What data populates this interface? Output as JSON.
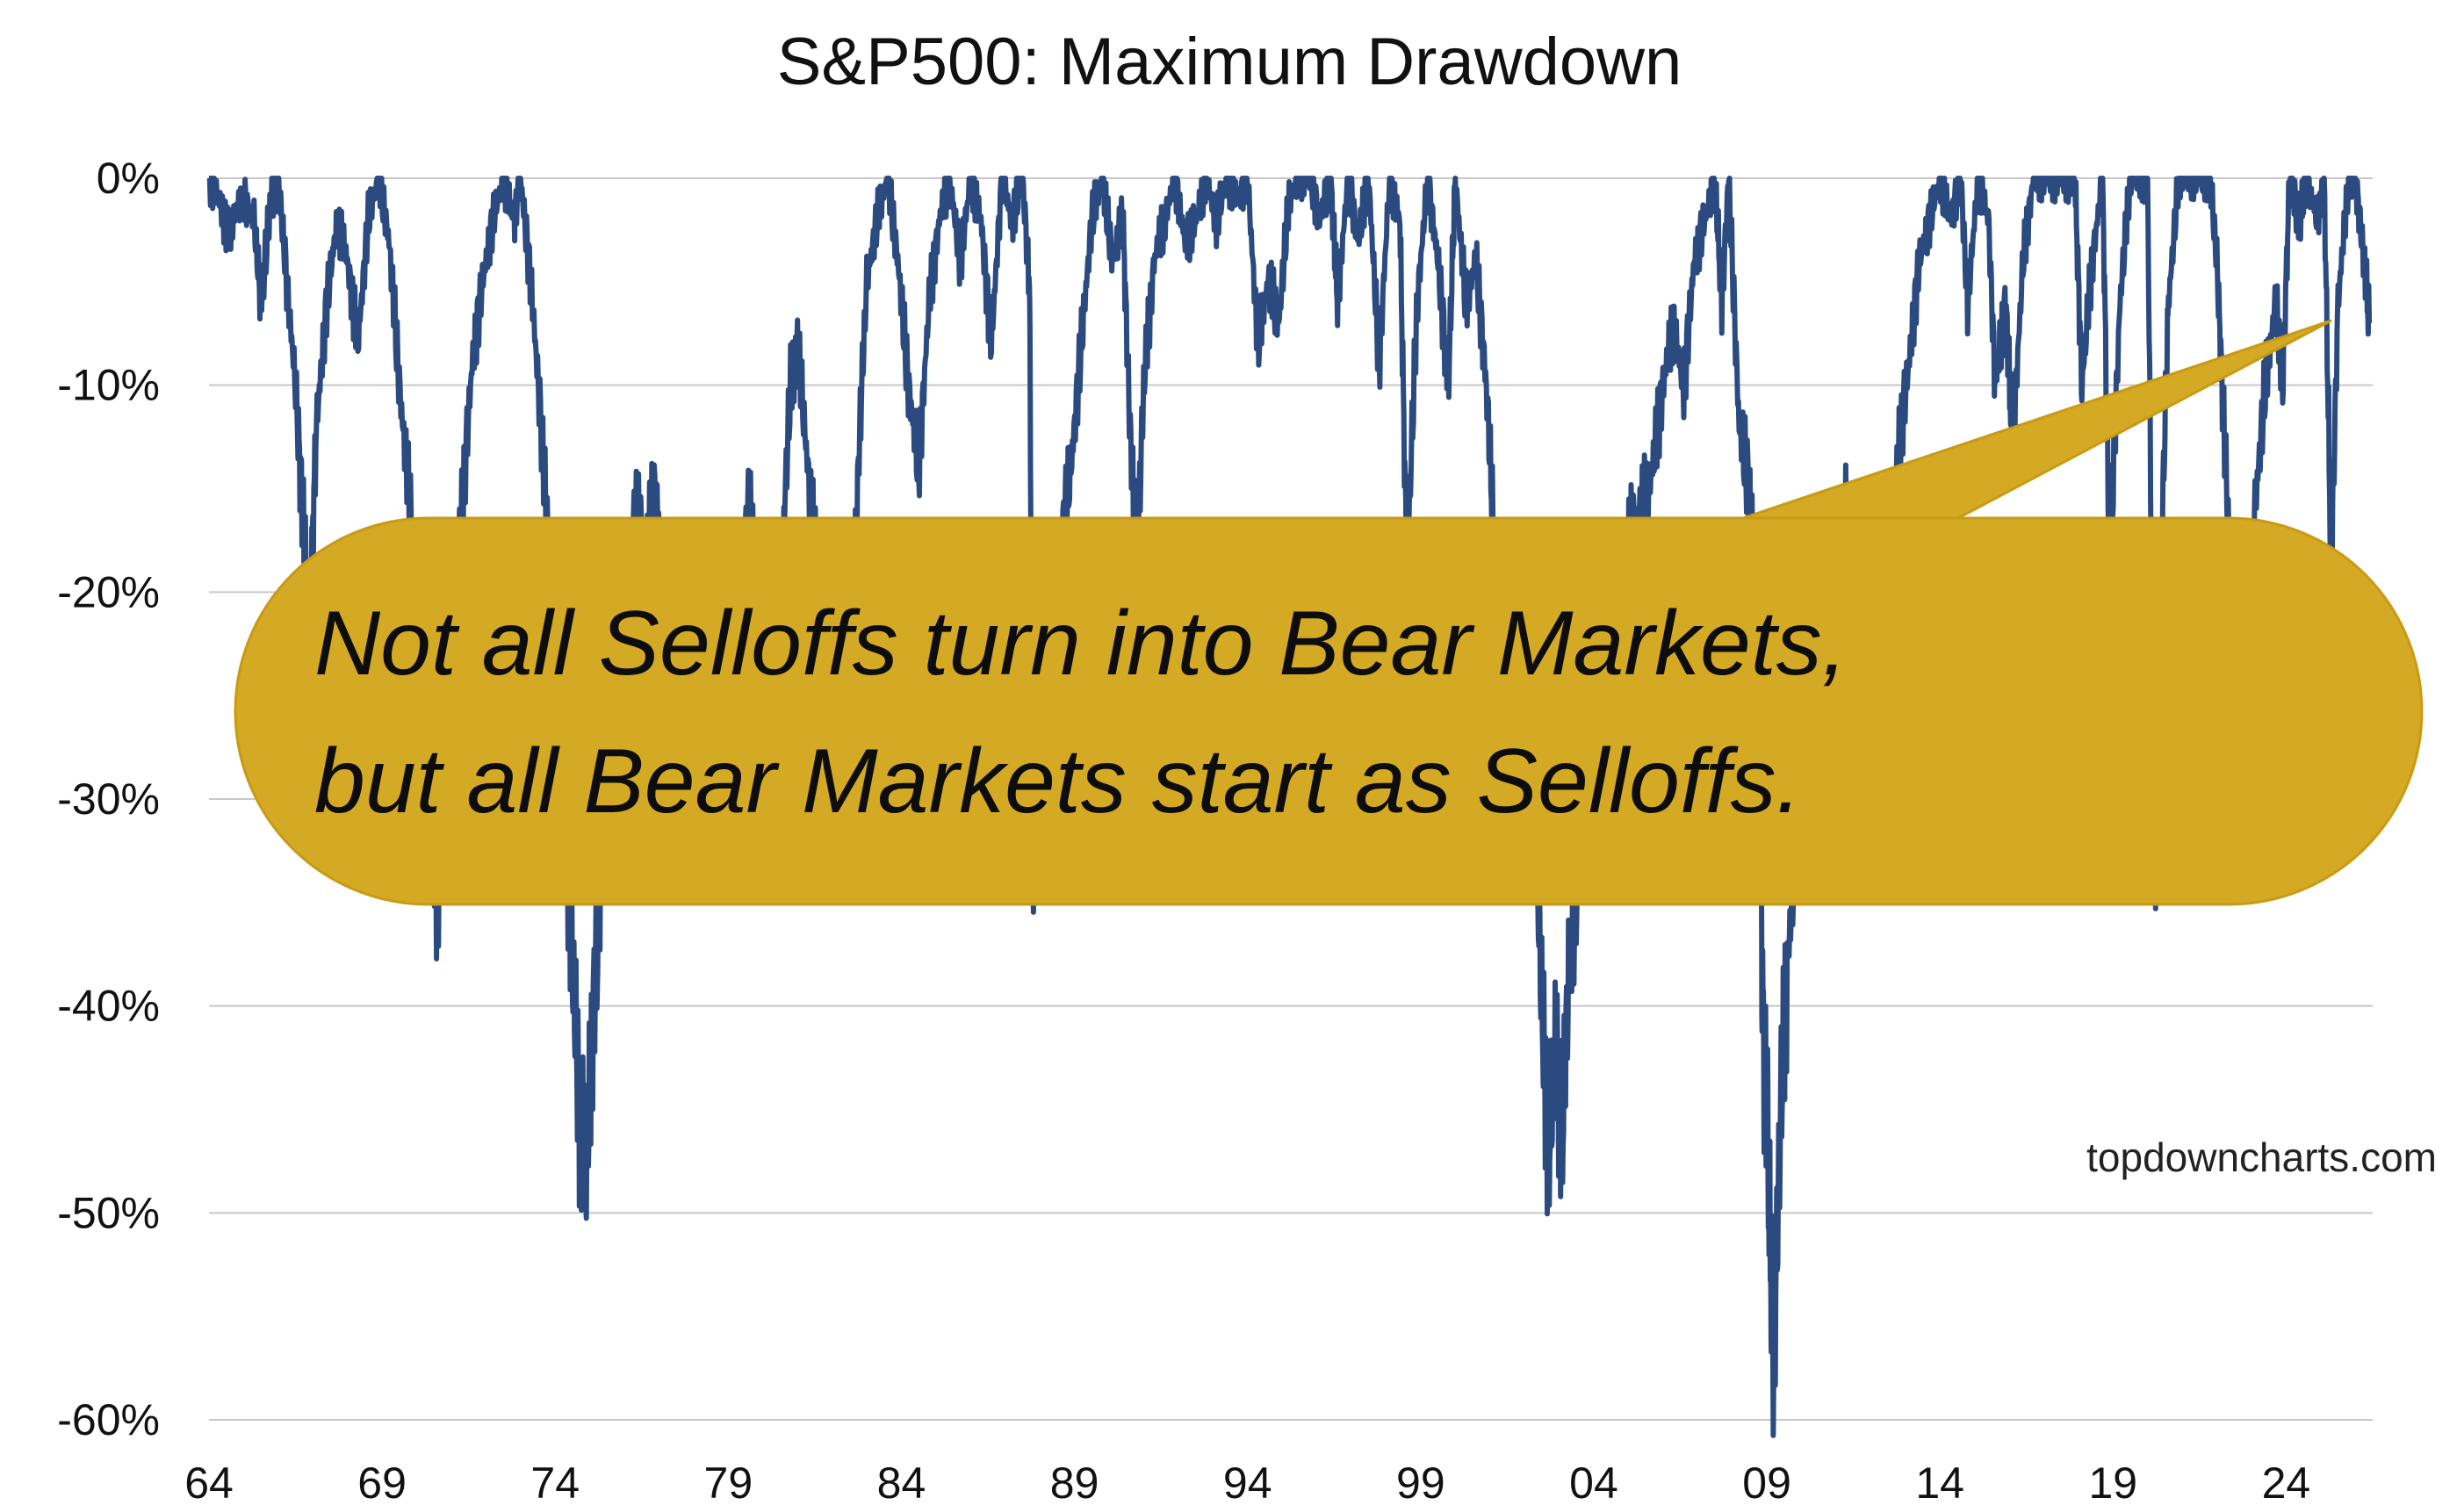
{
  "chart_data": {
    "type": "area",
    "title": "S&P500: Maximum Drawdown",
    "xlabel": "",
    "ylabel": "",
    "source": "topdowncharts.com",
    "callout": {
      "line1": "Not all Selloffs turn into Bear Markets,",
      "line2": "but all Bear Markets start as Selloffs."
    },
    "xlim": [
      1964,
      2026.5
    ],
    "ylim": [
      -60,
      0
    ],
    "x_ticks": [
      {
        "value": 1964,
        "label": "64"
      },
      {
        "value": 1969,
        "label": "69"
      },
      {
        "value": 1974,
        "label": "74"
      },
      {
        "value": 1979,
        "label": "79"
      },
      {
        "value": 1984,
        "label": "84"
      },
      {
        "value": 1989,
        "label": "89"
      },
      {
        "value": 1994,
        "label": "94"
      },
      {
        "value": 1999,
        "label": "99"
      },
      {
        "value": 2004,
        "label": "04"
      },
      {
        "value": 2009,
        "label": "09"
      },
      {
        "value": 2014,
        "label": "14"
      },
      {
        "value": 2019,
        "label": "19"
      },
      {
        "value": 2024,
        "label": "24"
      }
    ],
    "y_ticks": [
      {
        "value": 0,
        "label": "0%"
      },
      {
        "value": -10,
        "label": "-10%"
      },
      {
        "value": -20,
        "label": "-20%"
      },
      {
        "value": -30,
        "label": "-30%"
      },
      {
        "value": -40,
        "label": "-40%"
      },
      {
        "value": -50,
        "label": "-50%"
      },
      {
        "value": -60,
        "label": "-60%"
      }
    ],
    "grid": "horizontal",
    "series": [
      {
        "color": "#2b4a80",
        "points": [
          [
            1964.0,
            0
          ],
          [
            1964.3,
            -1
          ],
          [
            1964.6,
            -3
          ],
          [
            1965.0,
            -1
          ],
          [
            1965.3,
            -2
          ],
          [
            1965.5,
            -6
          ],
          [
            1965.8,
            -1
          ],
          [
            1966.0,
            0
          ],
          [
            1966.2,
            -4
          ],
          [
            1966.5,
            -10
          ],
          [
            1966.7,
            -16
          ],
          [
            1966.9,
            -22
          ],
          [
            1967.1,
            -12
          ],
          [
            1967.4,
            -6
          ],
          [
            1967.7,
            -2
          ],
          [
            1968.0,
            -4
          ],
          [
            1968.3,
            -8
          ],
          [
            1968.6,
            -2
          ],
          [
            1968.9,
            0
          ],
          [
            1969.2,
            -3
          ],
          [
            1969.5,
            -10
          ],
          [
            1969.8,
            -16
          ],
          [
            1970.1,
            -22
          ],
          [
            1970.4,
            -30
          ],
          [
            1970.6,
            -35
          ],
          [
            1970.8,
            -28
          ],
          [
            1971.0,
            -22
          ],
          [
            1971.3,
            -16
          ],
          [
            1971.6,
            -9
          ],
          [
            1971.9,
            -5
          ],
          [
            1972.2,
            -2
          ],
          [
            1972.5,
            0
          ],
          [
            1972.8,
            -2
          ],
          [
            1973.0,
            0
          ],
          [
            1973.3,
            -5
          ],
          [
            1973.6,
            -12
          ],
          [
            1973.9,
            -20
          ],
          [
            1974.2,
            -28
          ],
          [
            1974.5,
            -38
          ],
          [
            1974.7,
            -45
          ],
          [
            1974.9,
            -48
          ],
          [
            1975.1,
            -40
          ],
          [
            1975.4,
            -32
          ],
          [
            1975.7,
            -28
          ],
          [
            1976.0,
            -20
          ],
          [
            1976.3,
            -16
          ],
          [
            1976.6,
            -18
          ],
          [
            1976.9,
            -15
          ],
          [
            1977.2,
            -20
          ],
          [
            1977.5,
            -22
          ],
          [
            1977.8,
            -26
          ],
          [
            1978.1,
            -30
          ],
          [
            1978.4,
            -24
          ],
          [
            1978.7,
            -18
          ],
          [
            1979.0,
            -24
          ],
          [
            1979.3,
            -20
          ],
          [
            1979.6,
            -16
          ],
          [
            1979.9,
            -20
          ],
          [
            1980.2,
            -26
          ],
          [
            1980.5,
            -20
          ],
          [
            1980.8,
            -10
          ],
          [
            1981.0,
            -8
          ],
          [
            1981.3,
            -14
          ],
          [
            1981.6,
            -20
          ],
          [
            1981.9,
            -24
          ],
          [
            1982.2,
            -26
          ],
          [
            1982.5,
            -27
          ],
          [
            1982.8,
            -12
          ],
          [
            1983.0,
            -5
          ],
          [
            1983.3,
            -2
          ],
          [
            1983.6,
            0
          ],
          [
            1983.9,
            -4
          ],
          [
            1984.2,
            -10
          ],
          [
            1984.5,
            -14
          ],
          [
            1984.8,
            -6
          ],
          [
            1985.1,
            -2
          ],
          [
            1985.4,
            0
          ],
          [
            1985.7,
            -4
          ],
          [
            1986.0,
            0
          ],
          [
            1986.3,
            -2
          ],
          [
            1986.6,
            -8
          ],
          [
            1986.9,
            0
          ],
          [
            1987.2,
            -2
          ],
          [
            1987.5,
            0
          ],
          [
            1987.7,
            -5
          ],
          [
            1987.8,
            -33
          ],
          [
            1988.0,
            -26
          ],
          [
            1988.3,
            -20
          ],
          [
            1988.6,
            -18
          ],
          [
            1988.9,
            -14
          ],
          [
            1989.2,
            -8
          ],
          [
            1989.5,
            -2
          ],
          [
            1989.8,
            0
          ],
          [
            1990.1,
            -4
          ],
          [
            1990.4,
            -2
          ],
          [
            1990.6,
            -12
          ],
          [
            1990.8,
            -19
          ],
          [
            1991.0,
            -10
          ],
          [
            1991.3,
            -4
          ],
          [
            1991.6,
            -2
          ],
          [
            1991.9,
            0
          ],
          [
            1992.2,
            -3
          ],
          [
            1992.5,
            -2
          ],
          [
            1992.8,
            0
          ],
          [
            1993.1,
            -2
          ],
          [
            1993.4,
            0
          ],
          [
            1993.7,
            -1
          ],
          [
            1994.0,
            0
          ],
          [
            1994.3,
            -8
          ],
          [
            1994.6,
            -5
          ],
          [
            1994.9,
            -7
          ],
          [
            1995.2,
            -1
          ],
          [
            1995.5,
            0
          ],
          [
            1995.8,
            0
          ],
          [
            1996.1,
            -2
          ],
          [
            1996.4,
            0
          ],
          [
            1996.6,
            -6
          ],
          [
            1996.9,
            0
          ],
          [
            1997.2,
            -3
          ],
          [
            1997.5,
            0
          ],
          [
            1997.8,
            -9
          ],
          [
            1998.1,
            0
          ],
          [
            1998.4,
            -2
          ],
          [
            1998.6,
            -19
          ],
          [
            1998.9,
            -6
          ],
          [
            1999.2,
            0
          ],
          [
            1999.5,
            -4
          ],
          [
            1999.8,
            -10
          ],
          [
            2000.0,
            0
          ],
          [
            2000.3,
            -6
          ],
          [
            2000.6,
            -4
          ],
          [
            2000.9,
            -10
          ],
          [
            2001.1,
            -17
          ],
          [
            2001.3,
            -24
          ],
          [
            2001.6,
            -20
          ],
          [
            2001.8,
            -30
          ],
          [
            2002.0,
            -26
          ],
          [
            2002.3,
            -30
          ],
          [
            2002.5,
            -40
          ],
          [
            2002.7,
            -47
          ],
          [
            2002.9,
            -42
          ],
          [
            2003.1,
            -46
          ],
          [
            2003.3,
            -38
          ],
          [
            2003.6,
            -32
          ],
          [
            2003.9,
            -27
          ],
          [
            2004.2,
            -22
          ],
          [
            2004.5,
            -23
          ],
          [
            2004.8,
            -20
          ],
          [
            2005.1,
            -17
          ],
          [
            2005.4,
            -16
          ],
          [
            2005.7,
            -14
          ],
          [
            2006.0,
            -10
          ],
          [
            2006.3,
            -7
          ],
          [
            2006.6,
            -10
          ],
          [
            2006.9,
            -4
          ],
          [
            2007.2,
            -2
          ],
          [
            2007.5,
            0
          ],
          [
            2007.7,
            -6
          ],
          [
            2007.9,
            0
          ],
          [
            2008.2,
            -12
          ],
          [
            2008.5,
            -15
          ],
          [
            2008.7,
            -20
          ],
          [
            2008.8,
            -30
          ],
          [
            2008.9,
            -42
          ],
          [
            2009.0,
            -45
          ],
          [
            2009.1,
            -52
          ],
          [
            2009.2,
            -57
          ],
          [
            2009.4,
            -45
          ],
          [
            2009.6,
            -38
          ],
          [
            2009.9,
            -30
          ],
          [
            2010.2,
            -26
          ],
          [
            2010.4,
            -32
          ],
          [
            2010.7,
            -27
          ],
          [
            2011.0,
            -20
          ],
          [
            2011.3,
            -16
          ],
          [
            2011.6,
            -28
          ],
          [
            2011.9,
            -23
          ],
          [
            2012.2,
            -16
          ],
          [
            2012.5,
            -20
          ],
          [
            2012.8,
            -13
          ],
          [
            2013.1,
            -9
          ],
          [
            2013.4,
            -4
          ],
          [
            2013.7,
            -2
          ],
          [
            2014.0,
            0
          ],
          [
            2014.3,
            -2
          ],
          [
            2014.6,
            0
          ],
          [
            2014.8,
            -6
          ],
          [
            2015.1,
            0
          ],
          [
            2015.4,
            -2
          ],
          [
            2015.6,
            -10
          ],
          [
            2015.9,
            -6
          ],
          [
            2016.1,
            -13
          ],
          [
            2016.4,
            -4
          ],
          [
            2016.7,
            0
          ],
          [
            2017.0,
            0
          ],
          [
            2017.3,
            0
          ],
          [
            2017.6,
            0
          ],
          [
            2017.9,
            0
          ],
          [
            2018.1,
            -10
          ],
          [
            2018.4,
            -4
          ],
          [
            2018.7,
            0
          ],
          [
            2018.9,
            -19
          ],
          [
            2019.2,
            -6
          ],
          [
            2019.5,
            0
          ],
          [
            2019.8,
            0
          ],
          [
            2020.0,
            0
          ],
          [
            2020.2,
            -34
          ],
          [
            2020.4,
            -18
          ],
          [
            2020.6,
            -6
          ],
          [
            2020.9,
            0
          ],
          [
            2021.2,
            0
          ],
          [
            2021.5,
            0
          ],
          [
            2021.8,
            0
          ],
          [
            2022.0,
            -4
          ],
          [
            2022.2,
            -12
          ],
          [
            2022.5,
            -23
          ],
          [
            2022.7,
            -18
          ],
          [
            2022.9,
            -25
          ],
          [
            2023.1,
            -16
          ],
          [
            2023.4,
            -10
          ],
          [
            2023.7,
            -6
          ],
          [
            2023.9,
            -10
          ],
          [
            2024.1,
            0
          ],
          [
            2024.4,
            -2
          ],
          [
            2024.6,
            0
          ],
          [
            2024.9,
            -2
          ],
          [
            2025.1,
            0
          ],
          [
            2025.3,
            -19
          ],
          [
            2025.5,
            -6
          ],
          [
            2025.8,
            0
          ],
          [
            2026.0,
            0
          ],
          [
            2026.2,
            -3
          ],
          [
            2026.4,
            -7
          ]
        ]
      }
    ]
  }
}
